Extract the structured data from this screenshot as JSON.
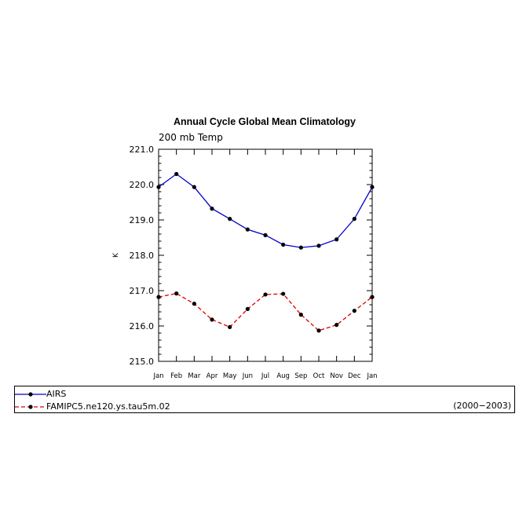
{
  "chart_data": {
    "type": "line",
    "title": "Annual Cycle Global Mean Climatology",
    "subtitle": "200 mb Temp",
    "ylabel": "K",
    "xlabel": "",
    "categories": [
      "Jan",
      "Feb",
      "Mar",
      "Apr",
      "May",
      "Jun",
      "Jul",
      "Aug",
      "Sep",
      "Oct",
      "Nov",
      "Dec",
      "Jan"
    ],
    "ylim": [
      215.0,
      221.0
    ],
    "yticks": [
      "215.0",
      "216.0",
      "217.0",
      "218.0",
      "219.0",
      "220.0",
      "221.0"
    ],
    "series": [
      {
        "name": "AIRS",
        "color": "#0000cc",
        "dash": "solid",
        "values": [
          219.93,
          220.3,
          219.93,
          219.32,
          219.03,
          218.73,
          218.57,
          218.3,
          218.22,
          218.27,
          218.45,
          219.03,
          219.93
        ]
      },
      {
        "name": "FAMIPC5.ne120.ys.tau5m.02",
        "color": "#dd0000",
        "dash": "dashed",
        "values": [
          216.82,
          216.92,
          216.63,
          216.18,
          215.97,
          216.48,
          216.89,
          216.91,
          216.32,
          215.87,
          216.03,
          216.43,
          216.82
        ]
      }
    ],
    "legend_placement": "bottom",
    "legend_note": "(2000−2003)"
  }
}
